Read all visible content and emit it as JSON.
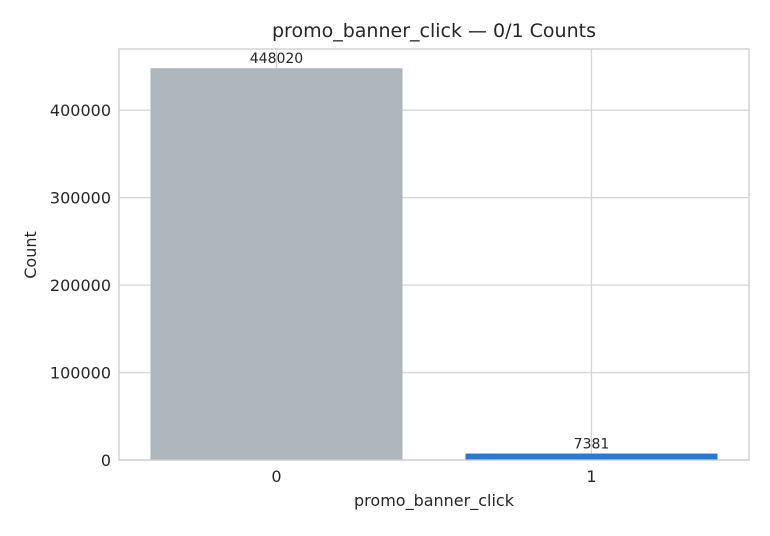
{
  "chart_data": {
    "type": "bar",
    "title": "promo_banner_click — 0/1 Counts",
    "xlabel": "promo_banner_click",
    "ylabel": "Count",
    "categories": [
      "0",
      "1"
    ],
    "values": [
      448020,
      7381
    ],
    "data_labels": [
      "448020",
      "7381"
    ],
    "bar_colors": [
      "#adb5bd",
      "#2878d0"
    ],
    "ylim": [
      0,
      470000
    ],
    "yticks": [
      0,
      100000,
      200000,
      300000,
      400000
    ],
    "ytick_labels": [
      "0",
      "100000",
      "200000",
      "300000",
      "400000"
    ],
    "grid": true,
    "legend": "none"
  }
}
